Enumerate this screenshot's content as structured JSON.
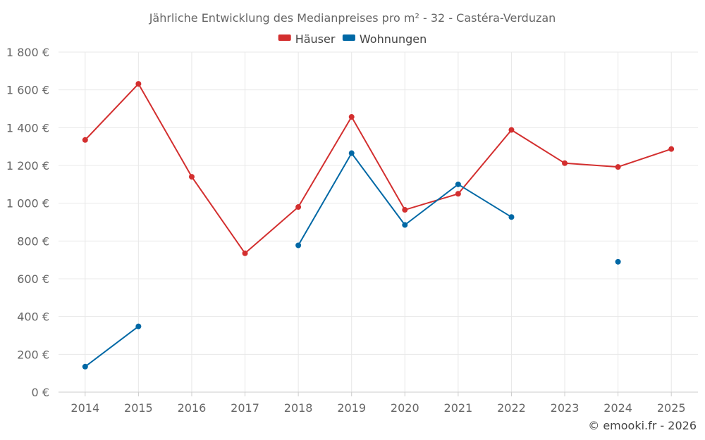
{
  "chart_data": {
    "type": "line",
    "title": "Jährliche Entwicklung des Medianpreises pro m² - 32 - Castéra-Verduzan",
    "categories": [
      "2014",
      "2015",
      "2016",
      "2017",
      "2018",
      "2019",
      "2020",
      "2021",
      "2022",
      "2023",
      "2024",
      "2025"
    ],
    "ylim": [
      0,
      1800
    ],
    "yticks": [
      0,
      200,
      400,
      600,
      800,
      1000,
      1200,
      1400,
      1600,
      1800
    ],
    "ytick_labels": [
      "0 €",
      "200 €",
      "400 €",
      "600 €",
      "800 €",
      "1 000 €",
      "1 200 €",
      "1 400 €",
      "1 600 €",
      "1 800 €"
    ],
    "grid": true,
    "legend_position": "top-center",
    "series": [
      {
        "name": "Häuser",
        "color": "#d32f2f",
        "values": [
          1335,
          1632,
          1140,
          735,
          980,
          1457,
          965,
          1050,
          1388,
          1212,
          1192,
          1287
        ]
      },
      {
        "name": "Wohnungen",
        "color": "#0068a5",
        "values": [
          135,
          348,
          null,
          null,
          777,
          1265,
          885,
          1100,
          927,
          null,
          690,
          null
        ]
      }
    ]
  },
  "footer": {
    "copyright": "© emooki.fr - 2026"
  }
}
